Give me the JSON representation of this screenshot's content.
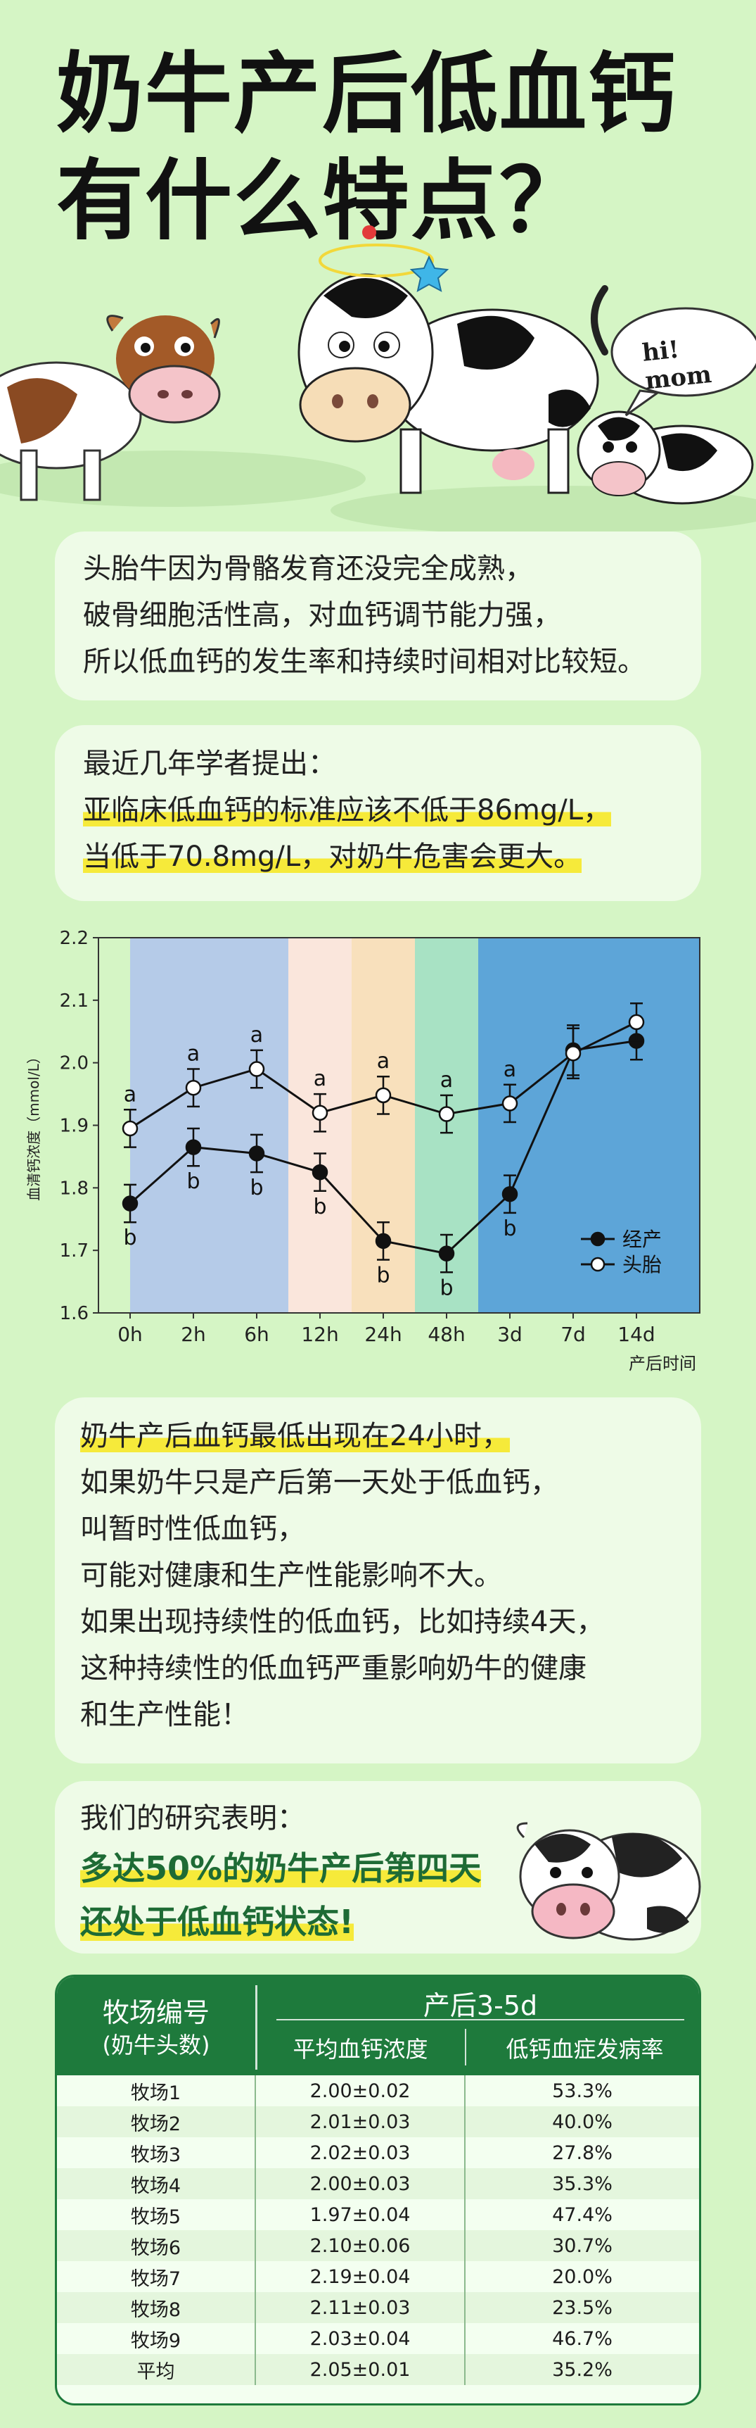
{
  "title": {
    "line1": "奶牛产后低血钙",
    "line2": "有什么特点？"
  },
  "speech_bubble": "hi! mom",
  "card1": {
    "lines": [
      "头胎牛因为骨骼发育还没完全成熟，",
      "破骨细胞活性高，对血钙调节能力强，",
      "所以低血钙的发生率和持续时间相对比较短。"
    ]
  },
  "card2": {
    "lead": "最近几年学者提出：",
    "lines": [
      "亚临床低血钙的标准应该不低于86mg/L，",
      "当低于70.8mg/L，对奶牛危害会更大。"
    ]
  },
  "chart_data": {
    "type": "line",
    "ylabel": "血清钙浓度（mmol/L）",
    "xlabel": "产后时间",
    "categories": [
      "0h",
      "2h",
      "6h",
      "12h",
      "24h",
      "48h",
      "3d",
      "7d",
      "14d"
    ],
    "y_ticks": [
      "2.2",
      "2.1",
      "2.0",
      "1.9",
      "1.8",
      "1.7",
      "1.6"
    ],
    "ylim": [
      1.6,
      2.2
    ],
    "series": [
      {
        "name": "经产",
        "values": [
          1.775,
          1.865,
          1.855,
          1.825,
          1.715,
          1.695,
          1.79,
          2.02,
          2.035
        ],
        "errors": [
          0.03,
          0.03,
          0.03,
          0.03,
          0.03,
          0.03,
          0.03,
          0.04,
          0.03
        ],
        "sig": [
          "b",
          "b",
          "b",
          "b",
          "b",
          "b",
          "b",
          "",
          ""
        ]
      },
      {
        "name": "头胎",
        "values": [
          1.895,
          1.96,
          1.99,
          1.92,
          1.948,
          1.918,
          1.935,
          2.015,
          2.065
        ],
        "errors": [
          0.03,
          0.03,
          0.03,
          0.03,
          0.03,
          0.03,
          0.03,
          0.04,
          0.03
        ],
        "sig": [
          "a",
          "a",
          "a",
          "a",
          "a",
          "a",
          "a",
          "",
          ""
        ]
      }
    ],
    "bands": [
      {
        "from": 0,
        "to": 3,
        "color": "#b5cbe8"
      },
      {
        "from": 3,
        "to": 4,
        "color": "#fae6dc"
      },
      {
        "from": 4,
        "to": 5,
        "color": "#f8e0bc"
      },
      {
        "from": 5,
        "to": 6,
        "color": "#a8e2c4"
      },
      {
        "from": 6,
        "to": 8.5,
        "color": "#5da5d8"
      }
    ],
    "legend_position": "right"
  },
  "card3": {
    "lines": [
      "奶牛产后血钙最低出现在24小时，",
      "如果奶牛只是产后第一天处于低血钙，",
      "叫暂时性低血钙，",
      "可能对健康和生产性能影响不大。",
      "如果出现持续性的低血钙，比如持续4天，",
      "这种持续性的低血钙严重影响奶牛的健康",
      "和生产性能！"
    ]
  },
  "card4": {
    "lead": "我们的研究表明：",
    "lines": [
      "多达50%的奶牛产后第四天",
      "还处于低血钙状态!"
    ]
  },
  "table": {
    "head_farm": "牧场编号",
    "head_farm_sub": "(奶牛头数)",
    "head_period": "产后3-5d",
    "head_col2": "平均血钙浓度",
    "head_col3": "低钙血症发病率",
    "rows": [
      [
        "牧场1",
        "2.00±0.02",
        "53.3%"
      ],
      [
        "牧场2",
        "2.01±0.03",
        "40.0%"
      ],
      [
        "牧场3",
        "2.02±0.03",
        "27.8%"
      ],
      [
        "牧场4",
        "2.00±0.03",
        "35.3%"
      ],
      [
        "牧场5",
        "1.97±0.04",
        "47.4%"
      ],
      [
        "牧场6",
        "2.10±0.06",
        "30.7%"
      ],
      [
        "牧场7",
        "2.19±0.04",
        "20.0%"
      ],
      [
        "牧场8",
        "2.11±0.03",
        "23.5%"
      ],
      [
        "牧场9",
        "2.03±0.04",
        "46.7%"
      ],
      [
        "平均",
        "2.05±0.01",
        "35.2%"
      ]
    ]
  },
  "colors": {
    "background": "#d5f5c5",
    "card": "#eefbe7",
    "highlight": "#f6ea3a",
    "table_header": "#1e7a3c"
  }
}
